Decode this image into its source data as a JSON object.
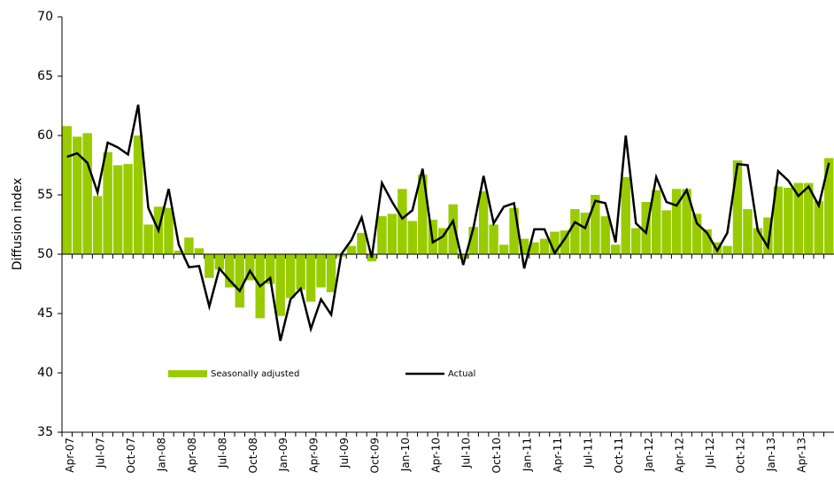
{
  "chart_data": {
    "type": "bar_line",
    "y_label": "Diffusion index",
    "categories": [
      "Apr-07",
      null,
      null,
      "Jul-07",
      null,
      null,
      "Oct-07",
      null,
      null,
      "Jan-08",
      null,
      null,
      "Apr-08",
      null,
      null,
      "Jul-08",
      null,
      null,
      "Oct-08",
      null,
      null,
      "Jan-09",
      null,
      null,
      "Apr-09",
      null,
      null,
      "Jul-09",
      null,
      null,
      "Oct-09",
      null,
      null,
      "Jan-10",
      null,
      null,
      "Apr-10",
      null,
      null,
      "Jul-10",
      null,
      null,
      "Oct-10",
      null,
      null,
      "Jan-11",
      null,
      null,
      "Apr-11",
      null,
      null,
      "Jul-11",
      null,
      null,
      "Oct-11",
      null,
      null,
      "Jan-12",
      null,
      null,
      "Apr-12",
      null,
      null,
      "Jul-12",
      null,
      null,
      "Oct-12",
      null,
      null,
      "Jan-13",
      null,
      null,
      "Apr-13",
      null,
      null,
      null
    ],
    "series": [
      {
        "name": "Seasonally adjusted",
        "type": "bar",
        "color": "#99cc00",
        "values": [
          60.8,
          59.9,
          60.2,
          54.9,
          58.6,
          57.5,
          57.6,
          60.0,
          52.5,
          54.0,
          53.9,
          50.3,
          51.4,
          50.5,
          48.0,
          48.7,
          47.2,
          45.5,
          47.8,
          44.6,
          47.5,
          44.8,
          46.3,
          47.0,
          46.0,
          47.2,
          46.8,
          49.8,
          50.7,
          51.8,
          49.4,
          53.2,
          53.4,
          55.5,
          52.8,
          56.7,
          52.9,
          52.2,
          54.2,
          49.6,
          52.3,
          55.3,
          52.5,
          50.8,
          53.9,
          51.3,
          51.0,
          51.3,
          51.9,
          52.0,
          53.8,
          53.5,
          55.0,
          53.2,
          50.8,
          56.5,
          52.2,
          54.4,
          55.4,
          53.7,
          55.5,
          55.5,
          53.4,
          52.1,
          51.0,
          50.7,
          57.9,
          53.8,
          52.2,
          53.1,
          55.7,
          55.6,
          56.0,
          56.0,
          54.5,
          58.1
        ]
      },
      {
        "name": "Actual",
        "type": "line",
        "color": "#000000",
        "values": [
          58.2,
          58.5,
          57.7,
          55.2,
          59.4,
          59.0,
          58.4,
          62.6,
          53.9,
          52.0,
          55.5,
          50.8,
          48.9,
          49.0,
          45.6,
          48.8,
          47.8,
          46.9,
          48.6,
          47.3,
          48.0,
          42.7,
          46.2,
          47.1,
          43.7,
          46.2,
          44.9,
          50.0,
          51.2,
          53.1,
          49.7,
          56.0,
          54.4,
          53.0,
          53.7,
          57.2,
          51.0,
          51.5,
          52.8,
          49.1,
          52.2,
          56.6,
          52.6,
          54.0,
          54.3,
          48.8,
          52.1,
          52.1,
          50.1,
          51.3,
          52.7,
          52.2,
          54.5,
          54.3,
          51.0,
          60.0,
          52.6,
          51.8,
          56.5,
          54.4,
          54.1,
          55.4,
          52.6,
          51.8,
          50.3,
          51.8,
          57.6,
          57.5,
          52.0,
          50.6,
          57.0,
          56.2,
          54.9,
          55.7,
          54.1,
          57.7
        ]
      }
    ],
    "bar_base": 50,
    "ylim": [
      35,
      70
    ],
    "yticks": [
      35,
      40,
      45,
      50,
      55,
      60,
      65,
      70
    ],
    "grid": false,
    "legend": "lower center"
  }
}
